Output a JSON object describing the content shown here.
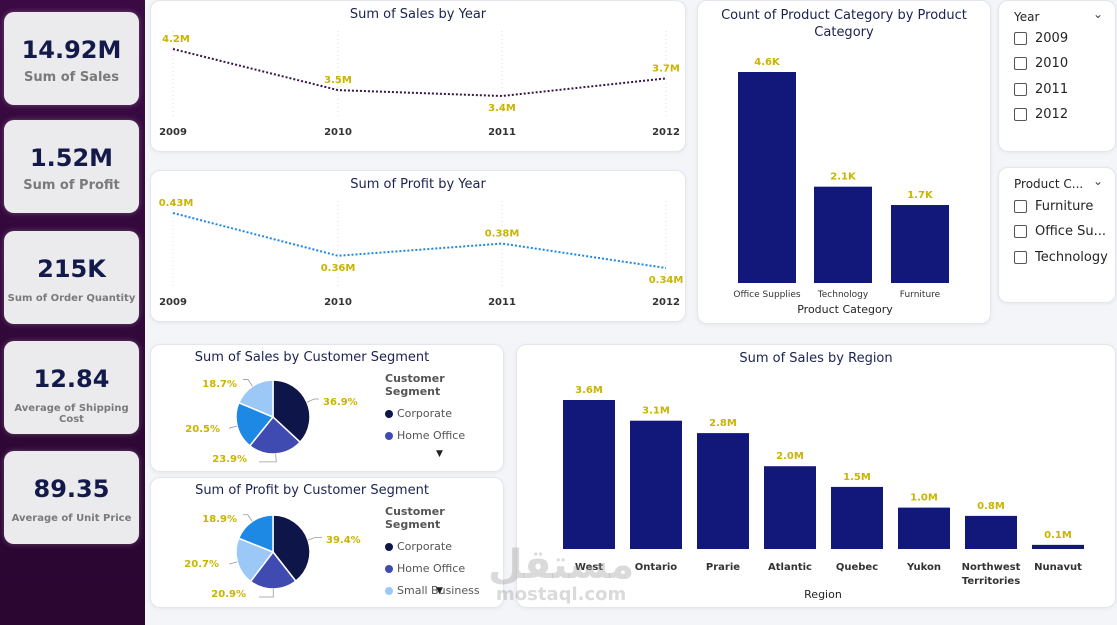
{
  "kpis": [
    {
      "value": "14.92M",
      "label": "Sum of Sales"
    },
    {
      "value": "1.52M",
      "label": "Sum of Profit"
    },
    {
      "value": "215K",
      "label": "Sum of Order Quantity"
    },
    {
      "value": "12.84",
      "label": "Average of Shipping Cost"
    },
    {
      "value": "89.35",
      "label": "Average of Unit Price"
    }
  ],
  "colors": {
    "navy": "#12177a",
    "label_yellow": "#c9b400",
    "sales_line": "#3a1547",
    "profit_line": "#1e88e5",
    "corporate": "#0e1548",
    "home_office": "#3f4bb0",
    "small_business": "#9cc8f7",
    "sky": "#1e88e5"
  },
  "slicers": {
    "year": {
      "title": "Year",
      "options": [
        "2009",
        "2010",
        "2011",
        "2012"
      ]
    },
    "category": {
      "title": "Product C...",
      "options": [
        "Furniture",
        "Office Su...",
        "Technology"
      ]
    }
  },
  "legend": {
    "title": "Customer Segment",
    "sales_items": [
      "Corporate",
      "Home Office"
    ],
    "profit_items": [
      "Corporate",
      "Home Office",
      "Small Business"
    ]
  },
  "watermark": {
    "arabic": "مستقل",
    "latin": "mostaql.com"
  },
  "chart_data": [
    {
      "id": "sales_year",
      "type": "line",
      "title": "Sum of Sales by Year",
      "categories": [
        "2009",
        "2010",
        "2011",
        "2012"
      ],
      "values": [
        4.2,
        3.5,
        3.4,
        3.7
      ],
      "labels": [
        "4.2M",
        "3.5M",
        "3.4M",
        "3.7M"
      ],
      "unit": "M"
    },
    {
      "id": "profit_year",
      "type": "line",
      "title": "Sum of Profit by Year",
      "categories": [
        "2009",
        "2010",
        "2011",
        "2012"
      ],
      "values": [
        0.43,
        0.36,
        0.38,
        0.34
      ],
      "labels": [
        "0.43M",
        "0.36M",
        "0.38M",
        "0.34M"
      ],
      "unit": "M"
    },
    {
      "id": "category_count",
      "type": "bar",
      "title": "Count of Product Category by Product Category",
      "xlabel": "Product Category",
      "categories": [
        "Office Supplies",
        "Technology",
        "Furniture"
      ],
      "values": [
        4.6,
        2.1,
        1.7
      ],
      "labels": [
        "4.6K",
        "2.1K",
        "1.7K"
      ],
      "unit": "K"
    },
    {
      "id": "sales_segment",
      "type": "pie",
      "title": "Sum of Sales by Customer Segment",
      "slices": [
        {
          "name": "Corporate",
          "value": 36.9,
          "label": "36.9%"
        },
        {
          "name": "Home Office",
          "value": 23.9,
          "label": "23.9%"
        },
        {
          "name": "",
          "value": 20.5,
          "label": "20.5%"
        },
        {
          "name": "",
          "value": 18.7,
          "label": "18.7%"
        }
      ]
    },
    {
      "id": "profit_segment",
      "type": "pie",
      "title": "Sum of Profit by Customer Segment",
      "slices": [
        {
          "name": "Corporate",
          "value": 39.4,
          "label": "39.4%"
        },
        {
          "name": "Home Office",
          "value": 20.9,
          "label": "20.9%"
        },
        {
          "name": "Small Business",
          "value": 20.7,
          "label": "20.7%"
        },
        {
          "name": "",
          "value": 18.9,
          "label": "18.9%"
        }
      ]
    },
    {
      "id": "sales_region",
      "type": "bar",
      "title": "Sum of Sales by Region",
      "xlabel": "Region",
      "categories": [
        "West",
        "Ontario",
        "Prarie",
        "Atlantic",
        "Quebec",
        "Yukon",
        "Northwest Territories",
        "Nunavut"
      ],
      "values": [
        3.6,
        3.1,
        2.8,
        2.0,
        1.5,
        1.0,
        0.8,
        0.1
      ],
      "labels": [
        "3.6M",
        "3.1M",
        "2.8M",
        "2.0M",
        "1.5M",
        "1.0M",
        "0.8M",
        "0.1M"
      ],
      "unit": "M"
    }
  ]
}
